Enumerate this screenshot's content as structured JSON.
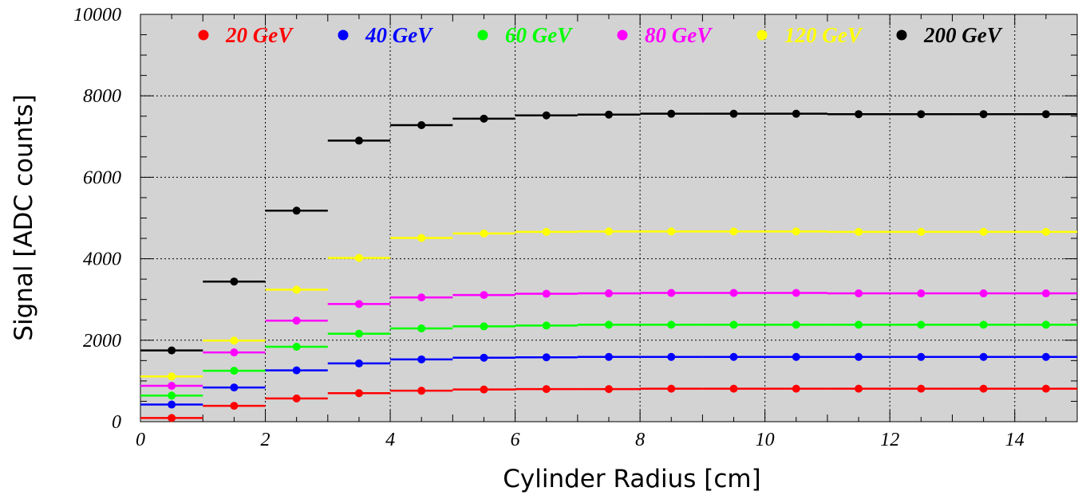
{
  "chart_data": {
    "type": "line",
    "title": "",
    "xlabel": "Cylinder Radius [cm]",
    "ylabel": "Signal [ADC counts]",
    "xlim": [
      0,
      15
    ],
    "ylim": [
      0,
      10000
    ],
    "x_ticks": [
      0,
      2,
      4,
      6,
      8,
      10,
      12,
      14
    ],
    "y_ticks": [
      0,
      2000,
      4000,
      6000,
      8000,
      10000
    ],
    "grid": true,
    "legend_position": "top",
    "plot_background": "#d3d3d3",
    "bin_edges": [
      0,
      1,
      2,
      3,
      4,
      5,
      6,
      7,
      8,
      9,
      10,
      11,
      12,
      13,
      14,
      15
    ],
    "x": [
      0.5,
      1.5,
      2.5,
      3.5,
      4.5,
      5.5,
      6.5,
      7.5,
      8.5,
      9.5,
      10.5,
      11.5,
      12.5,
      13.5,
      14.5
    ],
    "series": [
      {
        "name": "20 GeV",
        "color": "#ff0000",
        "values": [
          90,
          390,
          570,
          700,
          760,
          790,
          800,
          800,
          810,
          810,
          810,
          810,
          810,
          810,
          810
        ]
      },
      {
        "name": "40 GeV",
        "color": "#0000ff",
        "values": [
          420,
          840,
          1260,
          1430,
          1530,
          1570,
          1580,
          1590,
          1590,
          1590,
          1590,
          1590,
          1590,
          1590,
          1590
        ]
      },
      {
        "name": "60 GeV",
        "color": "#00ff00",
        "values": [
          640,
          1250,
          1840,
          2160,
          2290,
          2340,
          2360,
          2380,
          2380,
          2380,
          2380,
          2380,
          2380,
          2380,
          2380
        ]
      },
      {
        "name": "80 GeV",
        "color": "#ff00ff",
        "values": [
          880,
          1700,
          2480,
          2890,
          3050,
          3110,
          3140,
          3150,
          3160,
          3160,
          3160,
          3150,
          3150,
          3150,
          3150
        ]
      },
      {
        "name": "120 GeV",
        "color": "#ffff00",
        "values": [
          1110,
          1990,
          3240,
          4020,
          4510,
          4620,
          4660,
          4670,
          4670,
          4670,
          4670,
          4660,
          4660,
          4660,
          4660
        ]
      },
      {
        "name": "200 GeV",
        "color": "#000000",
        "values": [
          1750,
          3440,
          5180,
          6900,
          7280,
          7440,
          7520,
          7540,
          7560,
          7560,
          7560,
          7550,
          7550,
          7550,
          7550
        ]
      }
    ]
  }
}
